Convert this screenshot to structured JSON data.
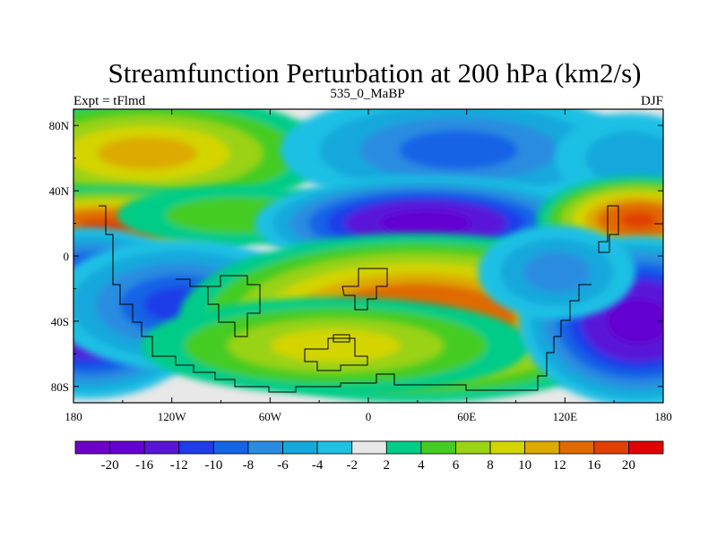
{
  "title": "Streamfunction Perturbation at 200 hPa (km2/s)",
  "subtitle_left": "Expt = tFlmd",
  "subtitle_center": "535_0_MaBP",
  "subtitle_right": "DJF",
  "lat_ticks": [
    "80N",
    "40N",
    "0",
    "40S",
    "80S"
  ],
  "lon_ticks": [
    "180",
    "120W",
    "60W",
    "0",
    "60E",
    "120E",
    "180"
  ],
  "colorbar": {
    "colors": [
      "#6d00c8",
      "#6400d2",
      "#5a14d8",
      "#1e3ce8",
      "#1464e6",
      "#2a8ce0",
      "#14a8dc",
      "#1ec0e4",
      "#e8e8e8",
      "#00cc88",
      "#44cc22",
      "#9ad214",
      "#d4d400",
      "#dcaa00",
      "#e06a00",
      "#e04000",
      "#e00000"
    ],
    "labels": [
      "-20",
      "-16",
      "-12",
      "-10",
      "-8",
      "-6",
      "-4",
      "-2",
      "2",
      "4",
      "6",
      "8",
      "10",
      "12",
      "16",
      "20"
    ]
  },
  "field_features": [
    {
      "value": 10,
      "lon": -135,
      "lat": 63,
      "slon": 55,
      "slat": 18
    },
    {
      "value": 16,
      "lon": -160,
      "lat": 18,
      "slon": 45,
      "slat": 12
    },
    {
      "value": 4,
      "lon": -80,
      "lat": 25,
      "slon": 40,
      "slat": 10
    },
    {
      "value": -8,
      "lon": 55,
      "lat": 65,
      "slon": 55,
      "slat": 18
    },
    {
      "value": -18,
      "lon": 35,
      "lat": 20,
      "slon": 50,
      "slat": 14
    },
    {
      "value": -4,
      "lon": 160,
      "lat": 60,
      "slon": 25,
      "slat": 15
    },
    {
      "value": 16,
      "lon": 165,
      "lat": 22,
      "slon": 30,
      "slat": 13
    },
    {
      "value": -20,
      "lon": -170,
      "lat": -35,
      "slon": 35,
      "slat": 25
    },
    {
      "value": -10,
      "lon": -115,
      "lat": -30,
      "slon": 40,
      "slat": 20
    },
    {
      "value": 16,
      "lon": 30,
      "lat": -38,
      "slon": 70,
      "slat": 25
    },
    {
      "value": 8,
      "lon": -20,
      "lat": -55,
      "slon": 60,
      "slat": 15
    },
    {
      "value": -18,
      "lon": 165,
      "lat": -40,
      "slon": 35,
      "slat": 25
    },
    {
      "value": -6,
      "lon": 115,
      "lat": -10,
      "slon": 25,
      "slat": 15
    }
  ]
}
